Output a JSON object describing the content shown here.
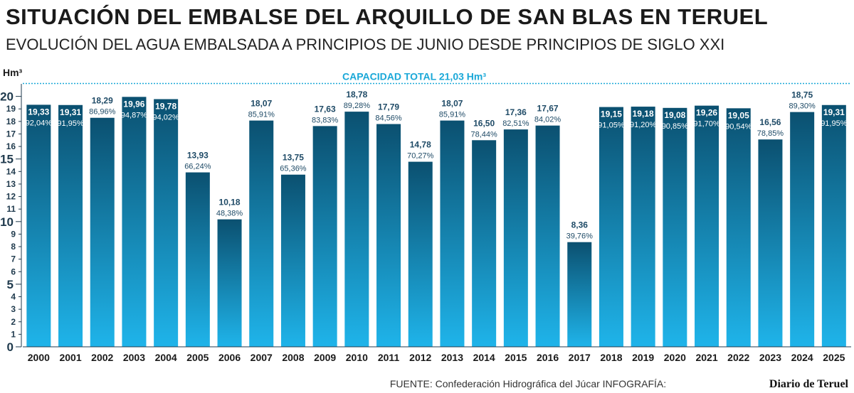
{
  "title": "SITUACIÓN DEL EMBALSE DEL ARQUILLO DE SAN BLAS EN TERUEL",
  "subtitle": "EVOLUCIÓN DEL AGUA EMBALSADA A PRINCIPIOS DE JUNIO DESDE PRINCIPIOS DE SIGLO XXI",
  "footer": {
    "source": "FUENTE: Confederación Hidrográfica del Júcar  INFOGRAFÍA:",
    "brand": "Diario de Teruel"
  },
  "colors": {
    "bar_top": "#0b5070",
    "bar_bottom": "#1fb4ea",
    "capacity_line": "#1aa8d8",
    "background": "#ffffff"
  },
  "chart_data": {
    "type": "bar",
    "ylabel": "Hm³",
    "ylim": [
      0,
      21
    ],
    "y_ticks": [
      0,
      1,
      2,
      3,
      4,
      5,
      6,
      7,
      8,
      9,
      10,
      11,
      12,
      13,
      14,
      15,
      16,
      17,
      18,
      19,
      20
    ],
    "y_major_ticks": [
      0,
      5,
      10,
      15,
      20
    ],
    "grid": false,
    "capacity": {
      "label": "CAPACIDAD TOTAL 21,03 Hm³",
      "value": 21.03
    },
    "categories": [
      "2000",
      "2001",
      "2002",
      "2003",
      "2004",
      "2005",
      "2006",
      "2007",
      "2008",
      "2009",
      "2010",
      "2011",
      "2012",
      "2013",
      "2014",
      "2015",
      "2016",
      "2017",
      "2018",
      "2019",
      "2020",
      "2021",
      "2022",
      "2023",
      "2024",
      "2025"
    ],
    "values": [
      19.33,
      19.31,
      18.29,
      19.96,
      19.78,
      13.93,
      10.18,
      18.07,
      13.75,
      17.63,
      18.78,
      17.79,
      14.78,
      18.07,
      16.5,
      17.36,
      17.67,
      8.36,
      19.15,
      19.18,
      19.08,
      19.26,
      19.05,
      16.56,
      18.75,
      19.31
    ],
    "value_labels": [
      "19,33",
      "19,31",
      "18,29",
      "19,96",
      "19,78",
      "13,93",
      "10,18",
      "18,07",
      "13,75",
      "17,63",
      "18,78",
      "17,79",
      "14,78",
      "18,07",
      "16,50",
      "17,36",
      "17,67",
      "8,36",
      "19,15",
      "19,18",
      "19,08",
      "19,26",
      "19,05",
      "16,56",
      "18,75",
      "19,31"
    ],
    "percent_labels": [
      "92,04%",
      "91,95%",
      "86,96%",
      "94,87%",
      "94,02%",
      "66,24%",
      "48,38%",
      "85,91%",
      "65,36%",
      "83,83%",
      "89,28%",
      "84,56%",
      "70,27%",
      "85,91%",
      "78,44%",
      "82,51%",
      "84,02%",
      "39,76%",
      "91,05%",
      "91,20%",
      "90,85%",
      "91,70%",
      "90,54%",
      "78,85%",
      "89,30%",
      "91,95%"
    ]
  }
}
